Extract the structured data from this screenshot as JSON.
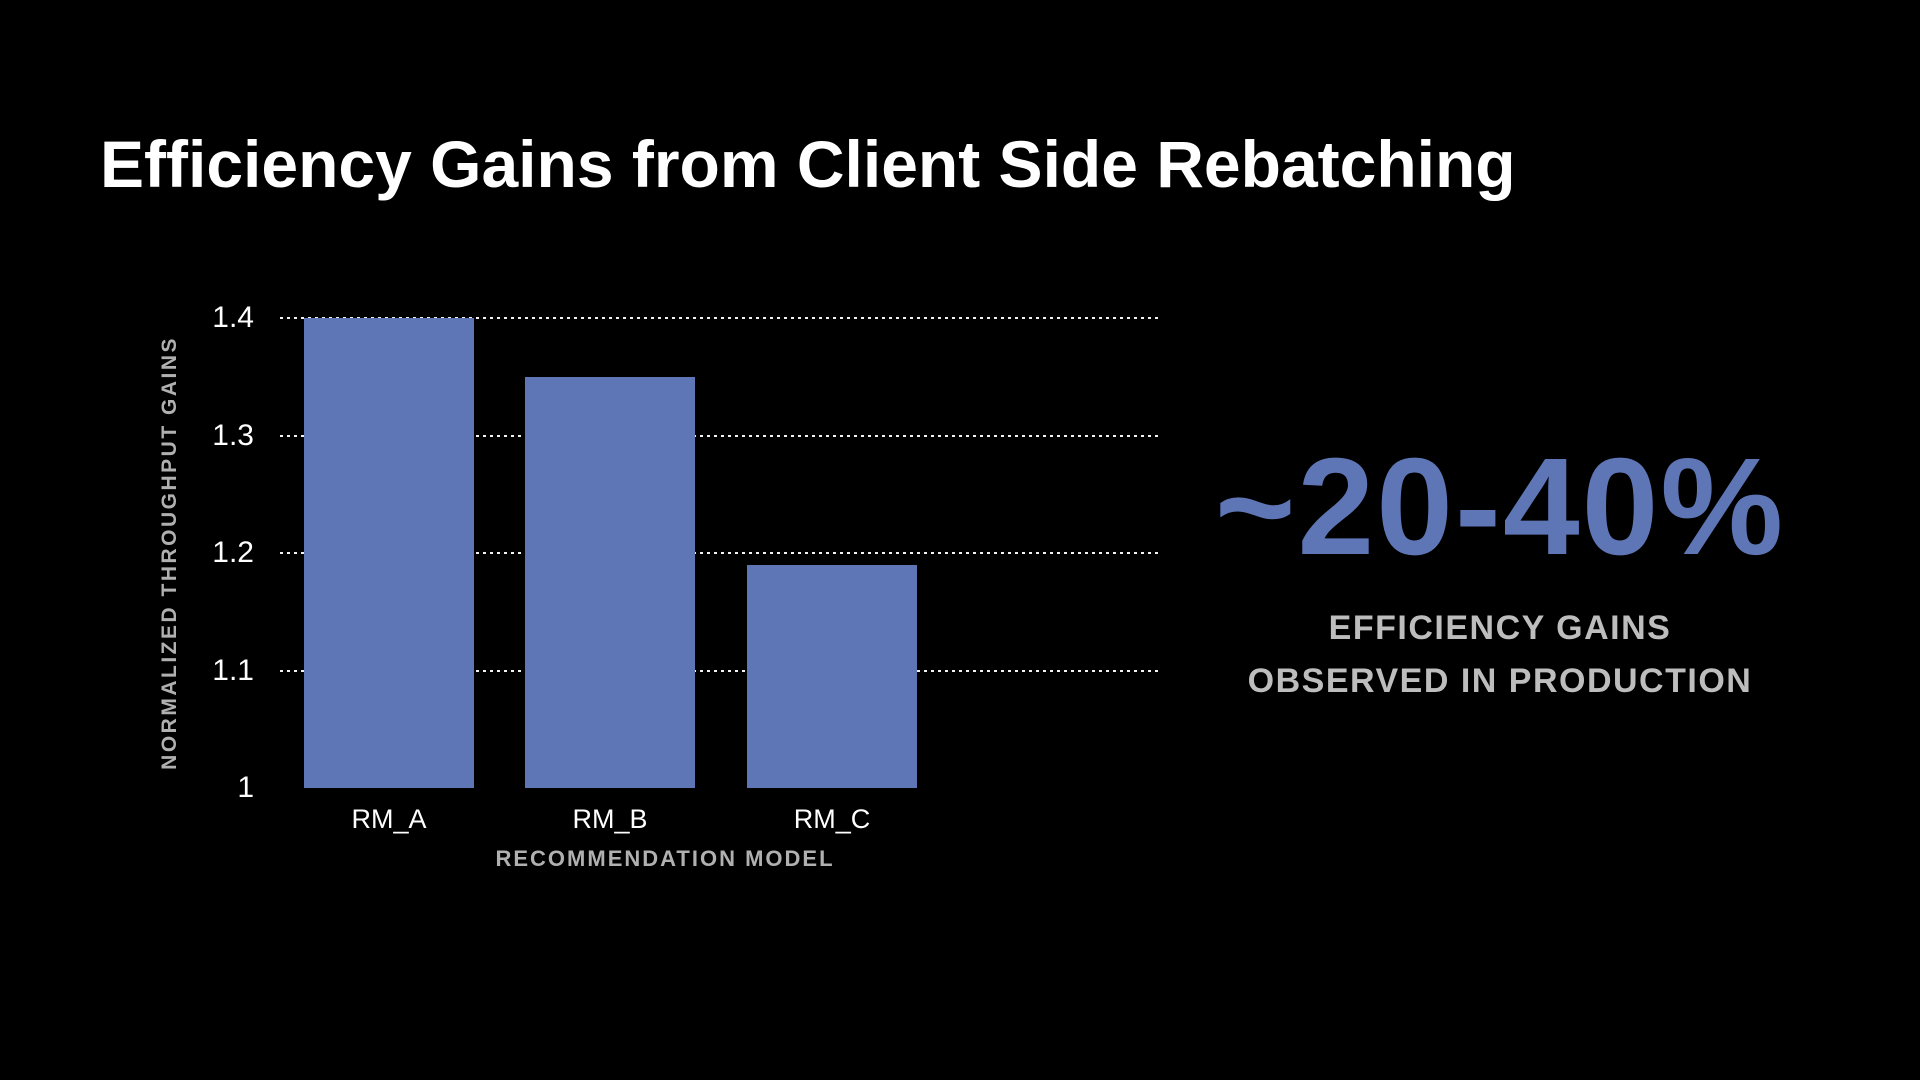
{
  "slide": {
    "title": "Efficiency Gains from Client Side Rebatching",
    "background_color": "#000000",
    "text_color": "#ffffff",
    "accent_color": "#5e76b6",
    "muted_text_color": "#b0b0b0",
    "caption_text_color": "#bdbdbd"
  },
  "chart_data": {
    "type": "bar",
    "title": "Efficiency Gains from Client Side Rebatching",
    "categories": [
      "RM_A",
      "RM_B",
      "RM_C"
    ],
    "values": [
      1.4,
      1.35,
      1.19
    ],
    "xlabel": "RECOMMENDATION MODEL",
    "ylabel": "NORMALIZED THROUGHPUT GAINS",
    "ylim": [
      1,
      1.4
    ],
    "yticks": [
      1,
      1.1,
      1.2,
      1.3,
      1.4
    ],
    "ytick_labels": [
      "1",
      "1.1",
      "1.2",
      "1.3",
      "1.4"
    ],
    "grid": "horizontal-dotted",
    "legend": "none",
    "bar_color": "#5e76b6"
  },
  "callout": {
    "value": "~20-40%",
    "line1": "EFFICIENCY GAINS",
    "line2": "OBSERVED IN PRODUCTION"
  }
}
